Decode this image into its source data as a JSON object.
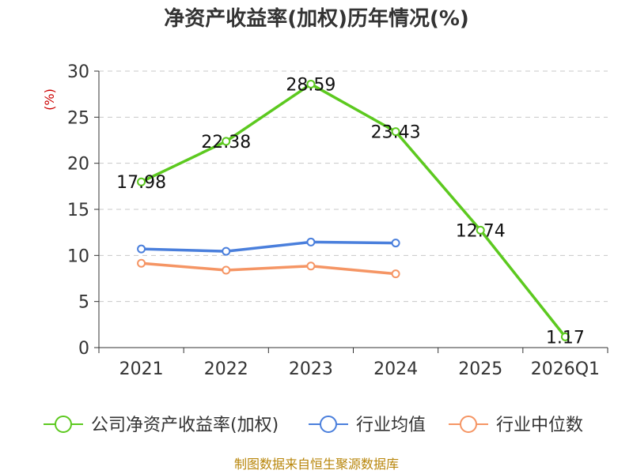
{
  "chart_data": {
    "type": "line",
    "title": "净资产收益率(加权)历年情况(%)",
    "ylabel": "(%)",
    "xlabel": "",
    "categories": [
      "2021",
      "2022",
      "2023",
      "2024",
      "2025",
      "2026Q1"
    ],
    "ylim": [
      0,
      30
    ],
    "yticks": [
      "0",
      "5",
      "10",
      "15",
      "20",
      "25",
      "30"
    ],
    "grid": true,
    "legend_position": "bottom",
    "series": [
      {
        "name": "公司净资产收益率(加权)",
        "color": "#5cc91f",
        "values": [
          17.98,
          22.38,
          28.59,
          23.43,
          12.74,
          1.17
        ],
        "labels": [
          "17.98",
          "22.38",
          "28.59",
          "23.43",
          "12.74",
          "1.17"
        ],
        "show_labels": true
      },
      {
        "name": "行业均值",
        "color": "#4a7fdc",
        "values": [
          10.7,
          10.45,
          11.45,
          11.35,
          null,
          null
        ],
        "show_labels": false
      },
      {
        "name": "行业中位数",
        "color": "#f59564",
        "values": [
          9.15,
          8.4,
          8.85,
          8.0,
          null,
          null
        ],
        "show_labels": false
      }
    ]
  },
  "footer": {
    "source": "制图数据来自恒生聚源数据库"
  }
}
